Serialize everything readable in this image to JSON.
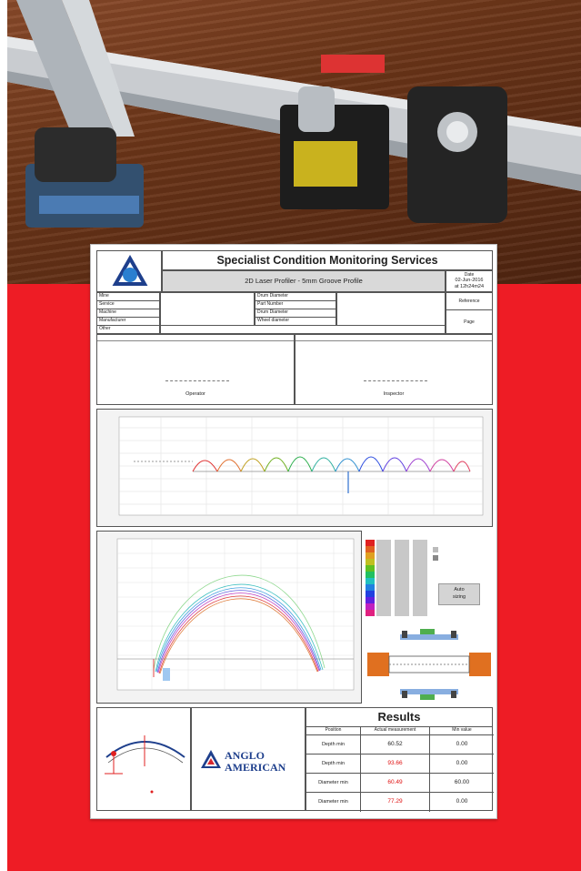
{
  "report": {
    "company": "Specialist Condition Monitoring Services",
    "subtitle": "2D Laser Profiler - 5mm Groove Profile",
    "date_label": "Date",
    "date_value": "02-Jun-2016",
    "time_value": "at 12h24m24",
    "page_label": "Page",
    "header_rows_left": [
      "Mine",
      "Service",
      "Machine",
      "Manufacturer",
      "Other"
    ],
    "header_rows_mid": [
      "Drum Diameter",
      "Part Number",
      "Drum Diameter",
      "Wheel diameter"
    ],
    "right_top_label": "Reference",
    "operator_left": "Operator",
    "operator_right": "Inspector"
  },
  "results": {
    "title": "Results",
    "headers": [
      "Position",
      "Actual measurement",
      "Min value"
    ],
    "rows": [
      {
        "position": "Depth min",
        "actual": "60.52",
        "min": "0.00",
        "highlight": false
      },
      {
        "position": "Depth min",
        "actual": "93.66",
        "min": "0.00",
        "highlight": true
      },
      {
        "position": "Diameter min",
        "actual": "60.49",
        "min": "60.00",
        "highlight": true
      },
      {
        "position": "Diameter min",
        "actual": "77.29",
        "min": "0.00",
        "highlight": true
      }
    ]
  },
  "logo_text": {
    "line1": "ANGLO",
    "line2": "AMERICAN"
  },
  "auto_button": {
    "line1": "Auto",
    "line2": "sizing"
  },
  "colors": {
    "accent_red": "#ee1c25",
    "logo_blue": "#1e3f8c",
    "logo_red": "#d7282f"
  }
}
